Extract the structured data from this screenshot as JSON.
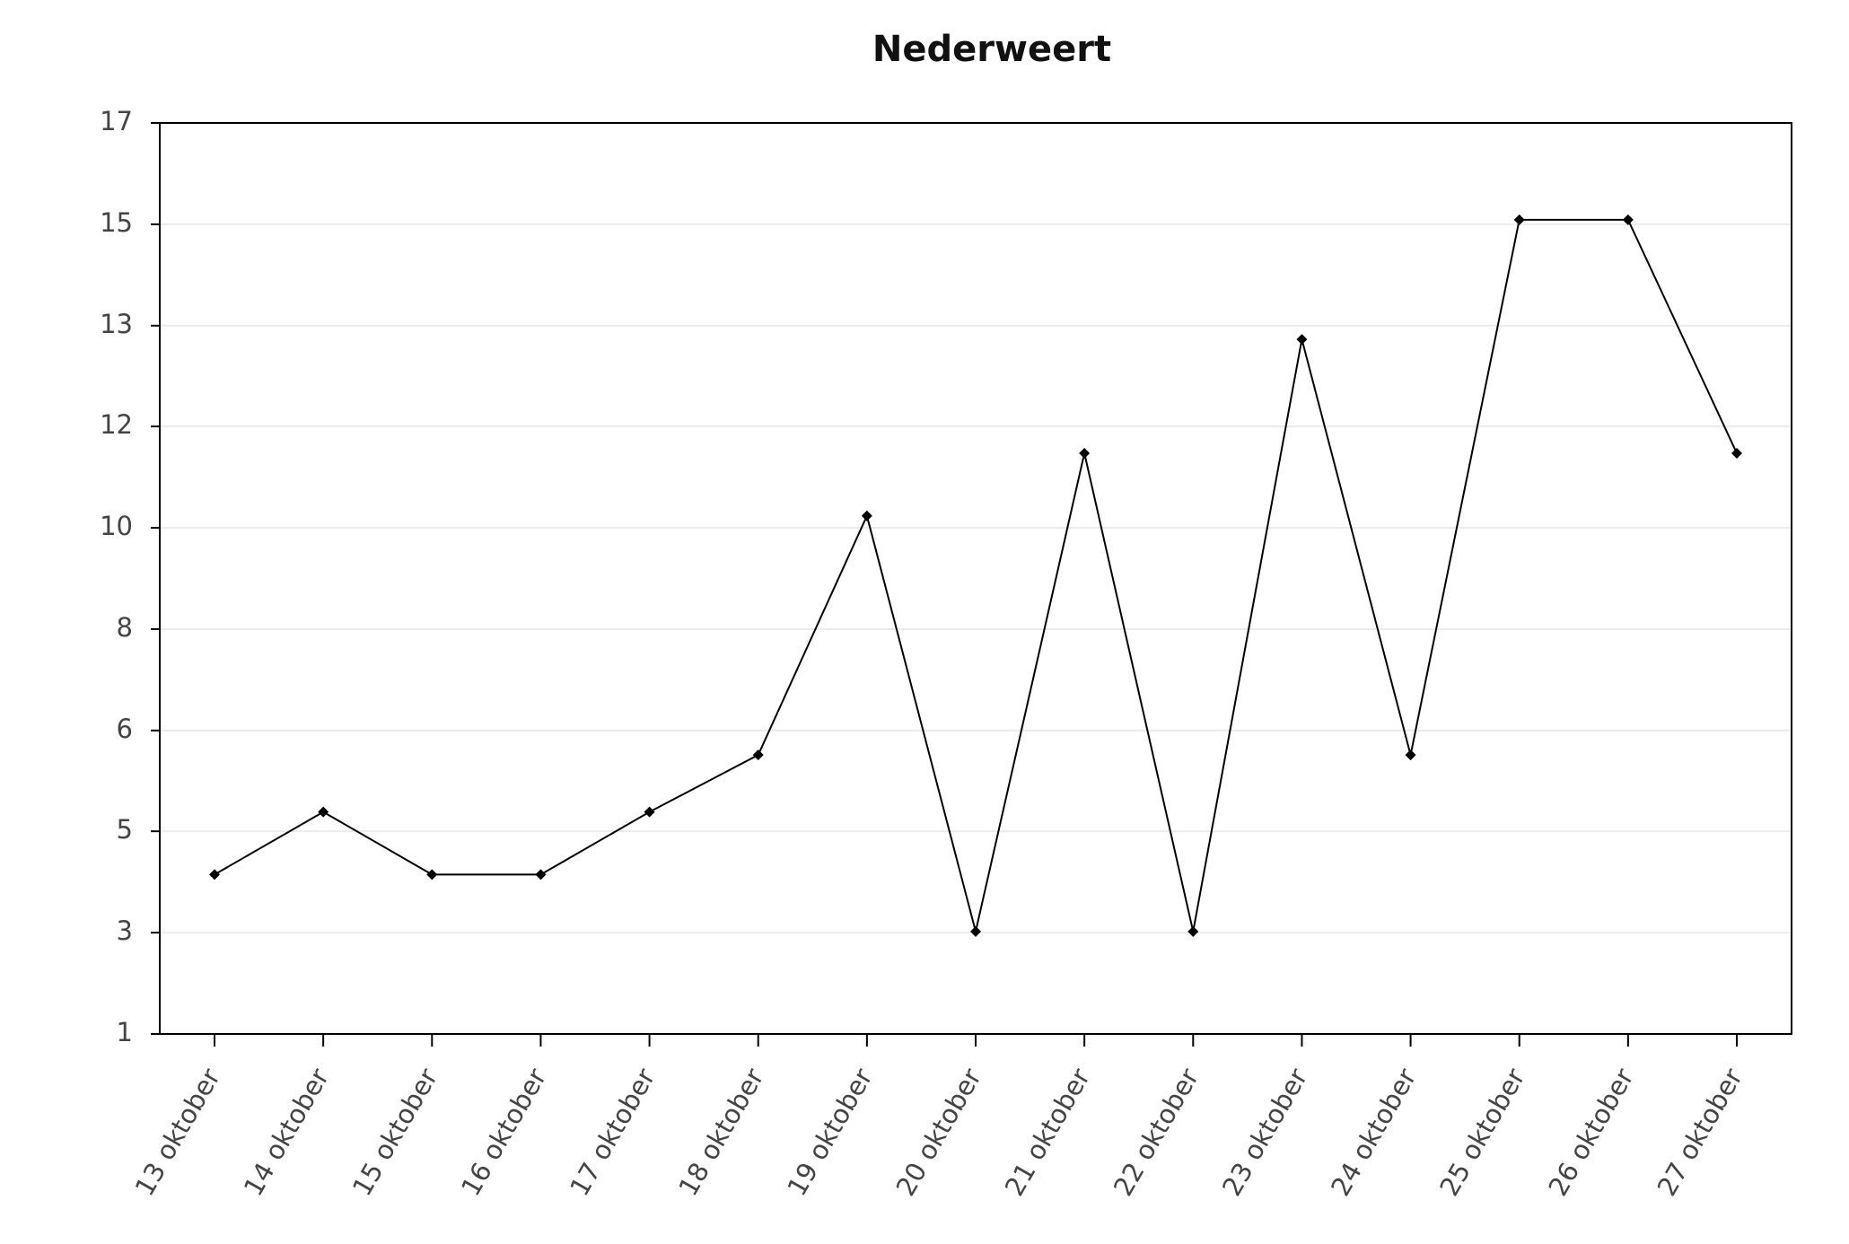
{
  "chart_data": {
    "type": "line",
    "title": "Nederweert",
    "categories": [
      "13 oktober",
      "14 oktober",
      "15 oktober",
      "16 oktober",
      "17 oktober",
      "18 oktober",
      "19 oktober",
      "20 oktober",
      "21 oktober",
      "22 oktober",
      "23 oktober",
      "24 oktober",
      "25 oktober",
      "26 oktober",
      "27 oktober"
    ],
    "values": [
      3.8,
      4.9,
      3.8,
      3.8,
      4.9,
      5.9,
      10.1,
      2.8,
      11.2,
      2.8,
      13.2,
      5.9,
      15.3,
      15.3,
      11.2
    ],
    "color": "#000000",
    "ylim": [
      1,
      17
    ],
    "yticks": [
      1,
      {
        "value": 2.78,
        "label": "3"
      },
      {
        "value": 4.56,
        "label": "5"
      },
      {
        "value": 6.33,
        "label": "6"
      },
      {
        "value": 8.11,
        "label": "8"
      },
      {
        "value": 9.89,
        "label": "10"
      },
      {
        "value": 11.67,
        "label": "12"
      },
      {
        "value": 13.44,
        "label": "13"
      },
      {
        "value": 15.22,
        "label": "15"
      },
      17
    ],
    "grid": true
  }
}
